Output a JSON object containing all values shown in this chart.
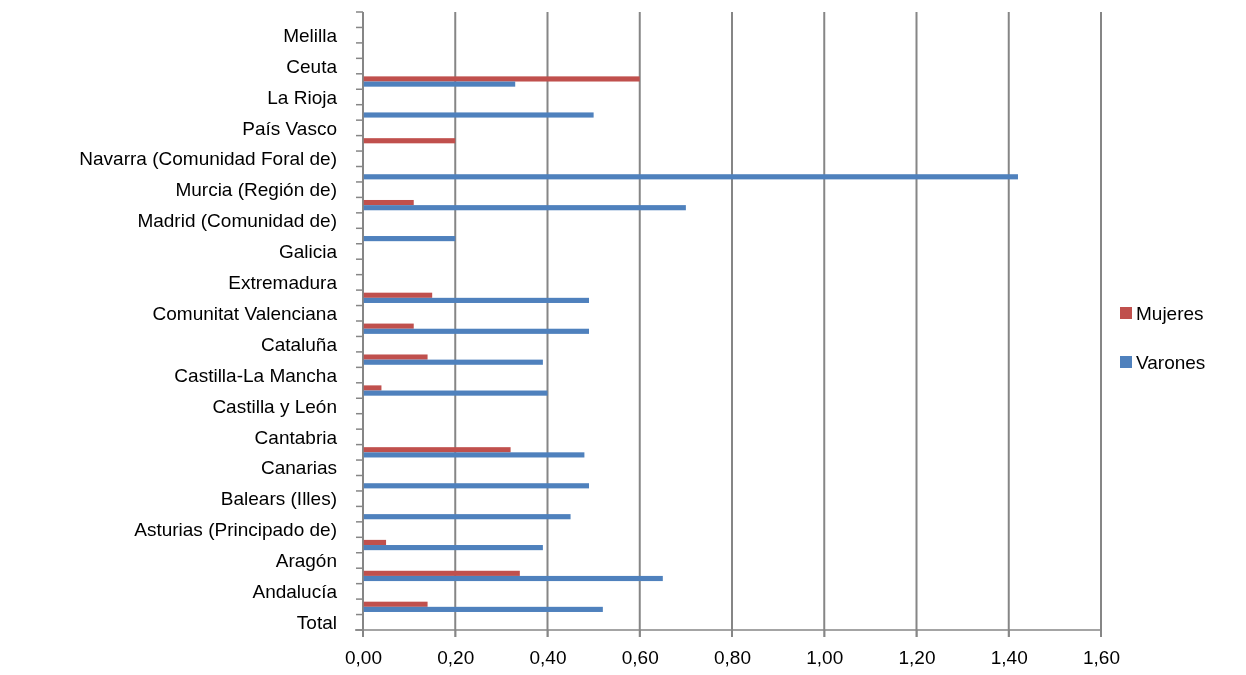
{
  "chart_data": {
    "type": "bar",
    "orientation": "horizontal",
    "categories": [
      null,
      "Melilla",
      null,
      "Ceuta",
      null,
      "La Rioja",
      null,
      "País Vasco",
      null,
      "Navarra (Comunidad Foral de)",
      null,
      "Murcia (Región de)",
      null,
      "Madrid (Comunidad de)",
      null,
      "Galicia",
      null,
      "Extremadura",
      null,
      "Comunitat Valenciana",
      null,
      "Cataluña",
      null,
      "Castilla-La Mancha",
      null,
      "Castilla y León",
      null,
      "Cantabria",
      null,
      "Canarias",
      null,
      "Balears (Illes)",
      null,
      "Asturias (Principado de)",
      null,
      "Aragón",
      null,
      "Andalucía",
      null,
      "Total"
    ],
    "series": [
      {
        "name": "Mujeres",
        "color": "#c0504d",
        "values": [
          null,
          null,
          null,
          null,
          0.6,
          null,
          null,
          null,
          0.2,
          null,
          null,
          null,
          0.11,
          null,
          null,
          null,
          null,
          null,
          0.15,
          null,
          0.11,
          null,
          0.14,
          null,
          0.04,
          null,
          null,
          null,
          0.32,
          null,
          null,
          null,
          null,
          null,
          0.05,
          null,
          0.34,
          null,
          0.14,
          null
        ]
      },
      {
        "name": "Varones",
        "color": "#4f81bd",
        "values": [
          null,
          null,
          null,
          null,
          0.33,
          null,
          0.5,
          null,
          null,
          null,
          1.42,
          null,
          0.7,
          null,
          0.2,
          null,
          null,
          null,
          0.49,
          null,
          0.49,
          null,
          0.39,
          null,
          0.4,
          null,
          null,
          null,
          0.48,
          null,
          0.49,
          null,
          0.45,
          null,
          0.39,
          null,
          0.65,
          null,
          0.52,
          null
        ]
      }
    ],
    "xlim": [
      0,
      1.6
    ],
    "xticks": [
      {
        "value": 0,
        "label": "0,00"
      },
      {
        "value": 0.2,
        "label": "0,20"
      },
      {
        "value": 0.4,
        "label": "0,40"
      },
      {
        "value": 0.6,
        "label": "0,60"
      },
      {
        "value": 0.8,
        "label": "0,80"
      },
      {
        "value": 1.0,
        "label": "1,00"
      },
      {
        "value": 1.2,
        "label": "1,20"
      },
      {
        "value": 1.4,
        "label": "1,40"
      },
      {
        "value": 1.6,
        "label": "1,60"
      }
    ],
    "grid": "x",
    "legend": "right"
  }
}
